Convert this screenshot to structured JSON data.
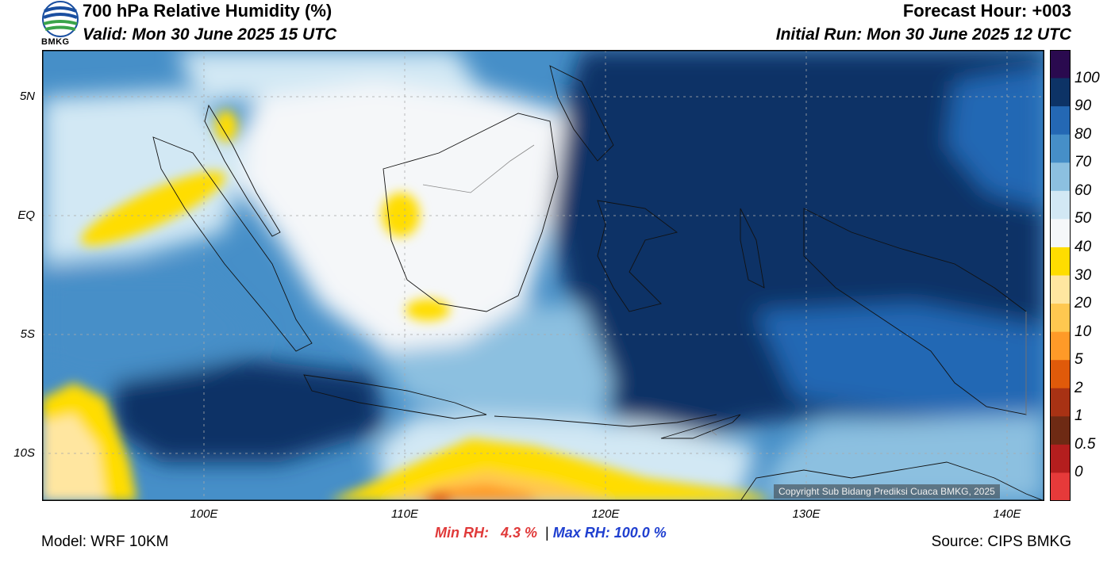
{
  "header": {
    "title": "700 hPa Relative Humidity (%)",
    "valid": "Valid: Mon 30 June 2025 15 UTC",
    "forecast_hour": "Forecast Hour: +003",
    "initial_run": "Initial Run: Mon 30 June 2025 12 UTC"
  },
  "logo": {
    "text": "BMKG",
    "icon": "bmkg-globe-icon"
  },
  "axes": {
    "lat_labels": [
      "5N",
      "EQ",
      "5S",
      "10S"
    ],
    "lon_labels": [
      "100E",
      "110E",
      "120E",
      "130E",
      "140E"
    ]
  },
  "colorbar": {
    "labels": [
      "100",
      "90",
      "80",
      "70",
      "60",
      "50",
      "40",
      "30",
      "20",
      "10",
      "5",
      "2",
      "1",
      "0.5",
      "0"
    ],
    "colors": [
      "#2a0a4f",
      "#0d3366",
      "#2468b4",
      "#468fc8",
      "#8cc0e0",
      "#d2e8f4",
      "#f5f7f9",
      "#ffdd00",
      "#ffe6a0",
      "#ffc850",
      "#ff9a28",
      "#e05a0a",
      "#a83214",
      "#6e2a14",
      "#b41e1e",
      "#e63a3a"
    ]
  },
  "stats": {
    "min_label": "Min RH:",
    "min_value": "4.3 %",
    "separator": "|",
    "max_label": "Max RH: 100.0 %"
  },
  "footer": {
    "model": "Model: WRF 10KM",
    "source": "Source: CIPS BMKG",
    "copyright": "Copyright Sub Bidang Prediksi Cuaca BMKG, 2025"
  }
}
